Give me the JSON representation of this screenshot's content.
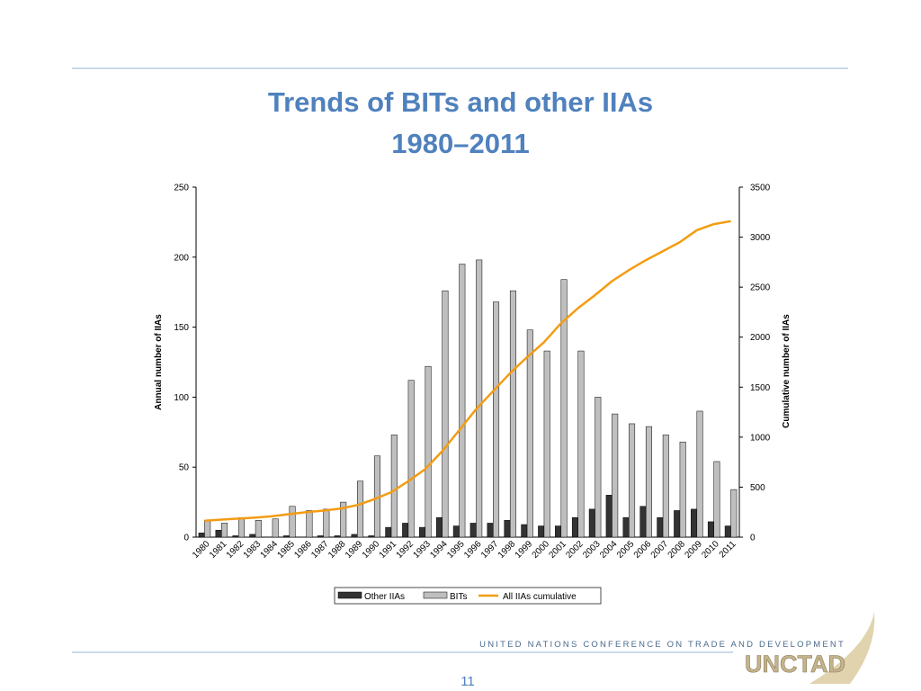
{
  "chart_data": {
    "type": "bar",
    "title": "Trends of BITs and other IIAs",
    "subtitle": "1980–2011",
    "ylabel": "Annual number of IIAs",
    "y2label": "Cumulative number of IIAs",
    "categories": [
      "1980",
      "1981",
      "1982",
      "1983",
      "1984",
      "1985",
      "1986",
      "1987",
      "1988",
      "1989",
      "1990",
      "1991",
      "1992",
      "1993",
      "1994",
      "1995",
      "1996",
      "1997",
      "1998",
      "1999",
      "2000",
      "2001",
      "2002",
      "2003",
      "2004",
      "2005",
      "2006",
      "2007",
      "2008",
      "2009",
      "2010",
      "2011"
    ],
    "series": [
      {
        "name": "Other IIAs",
        "type": "bar",
        "color": "#333333",
        "values": [
          3,
          5,
          1,
          2,
          0,
          1,
          0,
          1,
          1,
          2,
          1,
          7,
          10,
          7,
          14,
          8,
          10,
          10,
          12,
          9,
          8,
          8,
          14,
          20,
          30,
          14,
          22,
          14,
          19,
          20,
          11,
          8
        ]
      },
      {
        "name": "BITs",
        "type": "bar",
        "color": "#bfbfbf",
        "values": [
          12,
          10,
          14,
          12,
          13,
          22,
          19,
          20,
          25,
          40,
          58,
          73,
          112,
          122,
          176,
          195,
          198,
          168,
          176,
          148,
          133,
          184,
          133,
          100,
          88,
          81,
          79,
          73,
          68,
          90,
          54,
          34
        ]
      },
      {
        "name": "All IIAs cumulative",
        "type": "line",
        "axis": "y2",
        "color": "#f39c12",
        "values": [
          165,
          175,
          185,
          195,
          210,
          230,
          250,
          265,
          285,
          320,
          380,
          450,
          560,
          680,
          860,
          1070,
          1280,
          1460,
          1640,
          1800,
          1950,
          2140,
          2290,
          2420,
          2560,
          2670,
          2770,
          2860,
          2950,
          3070,
          3130,
          3160
        ]
      }
    ],
    "ylim": [
      0,
      250
    ],
    "yticks": [
      0,
      50,
      100,
      150,
      200,
      250
    ],
    "y2lim": [
      0,
      3500
    ],
    "y2ticks": [
      0,
      500,
      1000,
      1500,
      2000,
      2500,
      3000,
      3500
    ],
    "legend": "bottom",
    "grid": false
  },
  "footer": {
    "organization": "UNITED NATIONS CONFERENCE ON TRADE AND DEVELOPMENT",
    "logo": "UNCTAD",
    "page_number": "11"
  }
}
